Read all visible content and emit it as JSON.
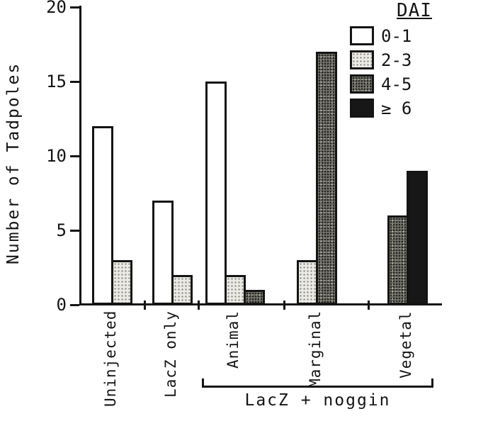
{
  "chart_data": {
    "type": "bar",
    "title": "",
    "xlabel": "",
    "ylabel": "Number of Tadpoles",
    "ylim": [
      0,
      20
    ],
    "yticks": [
      0,
      5,
      10,
      15,
      20
    ],
    "legend_title": "DAI",
    "legend_position": "top-right",
    "grid": false,
    "group_bracket_label": "LacZ + noggin",
    "group_bracket_categories": [
      "Animal",
      "Marginal",
      "Vegetal"
    ],
    "categories": [
      "Uninjected",
      "LacZ only",
      "Animal",
      "Marginal",
      "Vegetal"
    ],
    "series": [
      {
        "name": "0-1",
        "pattern": "plain",
        "color": "#ffffff",
        "values": [
          12,
          7,
          15,
          0,
          0
        ]
      },
      {
        "name": "2-3",
        "pattern": "stipple-light",
        "color": "#d9d7d0",
        "values": [
          3,
          2,
          2,
          3,
          0
        ]
      },
      {
        "name": "4-5",
        "pattern": "stipple-dark",
        "color": "#76766f",
        "values": [
          0,
          0,
          1,
          17,
          6
        ]
      },
      {
        "name": "≥ 6",
        "pattern": "solid",
        "color": "#171717",
        "values": [
          0,
          0,
          0,
          0,
          9
        ]
      }
    ],
    "ink_color": "#141414"
  }
}
